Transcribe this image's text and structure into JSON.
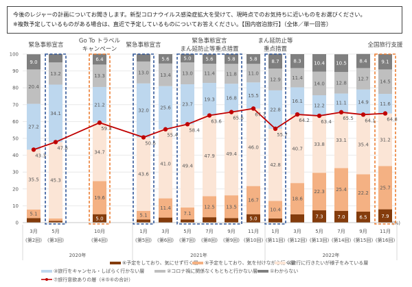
{
  "question": {
    "line1": "今後のレジャーの計画についてお聞きします。新型コロナウイルス感染症拡大を受けて、現時点でのお気持ちに近いものをお選びください。",
    "line2": "※複数予定しているものがある場合は、直近で予定しているものについてお答えください。【国内宿泊旅行】（全体／単一回答）"
  },
  "annotations": [
    {
      "lines": [
        "緊急事態宣言"
      ],
      "color": "#2F5597"
    },
    {
      "lines": [
        "Go To トラベル",
        "キャンペーン"
      ],
      "color": "#ED7D31"
    },
    {
      "lines": [
        "緊急事態宣言"
      ],
      "color": "#2F5597"
    },
    {
      "lines": [
        "緊急事態宣言",
        "まん延防止等重点措置"
      ],
      "color": "#2F5597"
    },
    {
      "lines": [
        "まん延防止等",
        "重点措置"
      ],
      "color": "#2F5597"
    },
    {
      "lines": [
        "全国旅行支援"
      ],
      "color": "#ED7D31"
    }
  ],
  "chart_data": {
    "type": "bar",
    "stacked": true,
    "ylim": [
      0,
      100
    ],
    "yticks": [
      0,
      10,
      20,
      30,
      40,
      50,
      60,
      70,
      80,
      90,
      100
    ],
    "unit": "(%)",
    "grid": true,
    "legend_position": "bottom",
    "categories": [
      {
        "month": "3月",
        "wave": "(第2回)",
        "year": "2020年"
      },
      {
        "month": "5月",
        "wave": "(第3回)",
        "year": "2020年"
      },
      {
        "month": "10月",
        "wave": "(第4回)",
        "year": "2020年"
      },
      {
        "month": "1月",
        "wave": "(第5回)",
        "year": "2021年"
      },
      {
        "month": "3月",
        "wave": "(第6回)",
        "year": "2021年"
      },
      {
        "month": "5月",
        "wave": "(第7回)",
        "year": "2021年"
      },
      {
        "month": "7月",
        "wave": "(第8回)",
        "year": "2021年"
      },
      {
        "month": "9月",
        "wave": "(第9回)",
        "year": "2021年"
      },
      {
        "month": "11月",
        "wave": "(第10回)",
        "year": "2021年"
      },
      {
        "month": "1月",
        "wave": "(第11回)",
        "year": "2022年"
      },
      {
        "month": "3月",
        "wave": "(第12回)",
        "year": "2022年"
      },
      {
        "month": "5月",
        "wave": "(第13回)",
        "year": "2022年"
      },
      {
        "month": "7月",
        "wave": "(第14回)",
        "year": "2022年"
      },
      {
        "month": "9月",
        "wave": "(第15回)",
        "year": "2022年"
      },
      {
        "month": "11月",
        "wave": "(第16回)",
        "year": "2022年"
      }
    ],
    "years": [
      "2020年",
      "2021年",
      "2022年"
    ],
    "series": [
      {
        "name": "⑥予定をしており、気にせず行く層",
        "color": "#843C0C",
        "label_color": "#ffffff",
        "values": [
          2.7,
          1.0,
          5.0,
          1.9,
          3.0,
          1.9,
          3.2,
          2.7,
          5.0,
          2.5,
          4.9,
          7.3,
          7.0,
          6.5,
          7.9
        ]
      },
      {
        "name": "⑤予定をしており、気を付けながら行く層",
        "color": "#F4B183",
        "label_color": "#595959",
        "values": [
          5.1,
          1.5,
          19.6,
          5.1,
          11.4,
          7.1,
          12.5,
          13.5,
          16.7,
          10.4,
          18.6,
          22.3,
          25.4,
          22.2,
          25.7
        ]
      },
      {
        "name": "④旅行に行きたいが様子をみている層",
        "color": "#FBE5D6",
        "label_color": "#595959",
        "values": [
          35.5,
          45.3,
          34.7,
          43.6,
          41.0,
          49.4,
          47.9,
          49.4,
          46.0,
          42.8,
          40.7,
          33.8,
          33.1,
          35.4,
          31.2
        ]
      },
      {
        "name": "③旅行をキャンセル・しばらく行かない層",
        "color": "#BDD7EE",
        "label_color": "#595959",
        "values": [
          27.2,
          34.1,
          21.2,
          32.0,
          25.6,
          23.7,
          19.3,
          16.8,
          15.5,
          22.8,
          16.1,
          12.2,
          11.1,
          14.9,
          11.6
        ]
      },
      {
        "name": "②コロナ禍に関係なくもともと行かない層",
        "color": "#BFBFBF",
        "label_color": "#595959",
        "values": [
          20.4,
          13.2,
          13.3,
          13.0,
          13.4,
          13.0,
          11.4,
          11.8,
          11.0,
          12.9,
          11.4,
          14.0,
          12.8,
          12.7,
          14.5
        ]
      },
      {
        "name": "①わからない",
        "color": "#7F7F7F",
        "label_color": "#ffffff",
        "values": [
          9.0,
          4.9,
          6.4,
          4.4,
          5.6,
          5.0,
          5.6,
          5.8,
          5.8,
          8.7,
          8.3,
          10.4,
          10.5,
          8.4,
          9.1
        ]
      }
    ],
    "line": {
      "name": "⑦旅行意欲ありの層（④⑤⑥の合計）",
      "color": "#C00000",
      "values": [
        43.3,
        47.8,
        59.3,
        50.6,
        55.4,
        58.4,
        63.6,
        65.6,
        67.7,
        55.7,
        64.2,
        63.4,
        65.5,
        64.1,
        64.8
      ]
    }
  }
}
